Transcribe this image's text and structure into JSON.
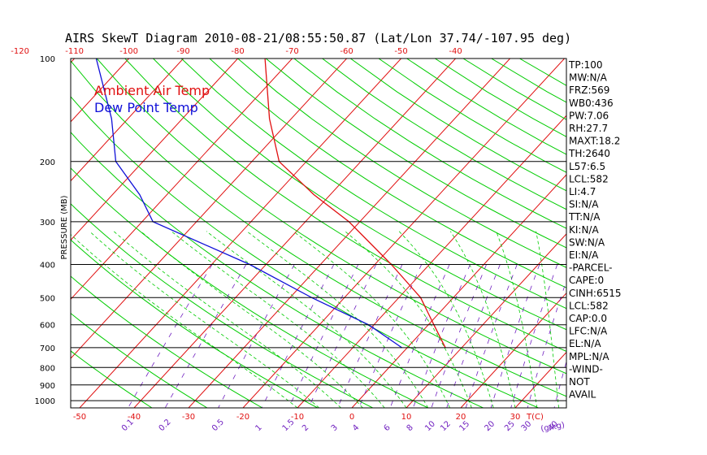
{
  "chart_data": {
    "type": "line",
    "title": "AIRS SkewT Diagram 2010-08-21/08:55:50.87 (Lat/Lon 37.74/-107.95 deg)",
    "ylabel": "PRESSURE (MB)",
    "pressure_ticks": [
      "100",
      "200",
      "300",
      "400",
      "500",
      "600",
      "700",
      "800",
      "900",
      "1000"
    ],
    "pressure_levels": [
      100,
      200,
      300,
      400,
      500,
      600,
      700,
      800,
      900,
      1000
    ],
    "bottom_temp_ticks": [
      "-50",
      "-40",
      "-30",
      "-20",
      "-10",
      "0",
      "10",
      "20",
      "30"
    ],
    "top_temp_ticks": [
      "-120",
      "-110",
      "-100",
      "-90",
      "-80",
      "-70",
      "-60",
      "-50",
      "-40"
    ],
    "mixing_ratio_ticks": [
      "0.1",
      "0.2",
      "0.5",
      "1",
      "1.5",
      "2",
      "3",
      "4",
      "6",
      "8",
      "10",
      "12",
      "15",
      "20",
      "25",
      "30",
      "40"
    ],
    "bottom_axis_tail": "T(C)",
    "mixing_ratio_unit": "(g/kg)",
    "legend": [
      {
        "name": "Ambient Air Temp",
        "color": "#e01010"
      },
      {
        "name": "Dew Point Temp",
        "color": "#1010d8"
      }
    ],
    "series": [
      {
        "name": "Ambient Air Temp",
        "color": "#e01010",
        "points": [
          {
            "p": 100,
            "t": -75
          },
          {
            "p": 150,
            "t": -64
          },
          {
            "p": 200,
            "t": -55
          },
          {
            "p": 250,
            "t": -43
          },
          {
            "p": 300,
            "t": -32
          },
          {
            "p": 400,
            "t": -17
          },
          {
            "p": 500,
            "t": -6
          },
          {
            "p": 600,
            "t": 1
          },
          {
            "p": 700,
            "t": 7
          }
        ]
      },
      {
        "name": "Dew Point Temp",
        "color": "#1010d8",
        "points": [
          {
            "p": 100,
            "t": -106
          },
          {
            "p": 150,
            "t": -93
          },
          {
            "p": 200,
            "t": -85
          },
          {
            "p": 250,
            "t": -75
          },
          {
            "p": 300,
            "t": -68
          },
          {
            "p": 400,
            "t": -43
          },
          {
            "p": 500,
            "t": -26
          },
          {
            "p": 600,
            "t": -11
          },
          {
            "p": 700,
            "t": -1
          }
        ]
      }
    ],
    "isotherm_color": "#e01010",
    "dry_adiabat_color": "#00cc00",
    "moist_adiabat_color": "#00cc00",
    "mixing_ratio_color": "#7020c0"
  },
  "side_panel": [
    "TP:100",
    "MW:N/A",
    "FRZ:569",
    "WB0:436",
    "PW:7.06",
    "RH:27.7",
    "MAXT:18.2",
    "TH:2640",
    "L57:6.5",
    "LCL:582",
    "LI:4.7",
    "SI:N/A",
    "TT:N/A",
    "KI:N/A",
    "SW:N/A",
    "EI:N/A",
    "-PARCEL-",
    "CAPE:0",
    "CINH:6515",
    "LCL:582",
    "CAP:0.0",
    "LFC:N/A",
    "EL:N/A",
    "MPL:N/A",
    "-WIND-",
    "NOT",
    "AVAIL"
  ]
}
